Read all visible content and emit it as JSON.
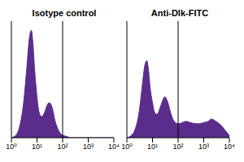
{
  "chart_data": [
    {
      "type": "area",
      "title": "Isotype control",
      "x": [
        1,
        1.5,
        2,
        3,
        4,
        5,
        6,
        7,
        8,
        10,
        12,
        15,
        20,
        25,
        30,
        40,
        50,
        70,
        100,
        150,
        200,
        300,
        500,
        700,
        1000,
        1500,
        2000,
        3000,
        5000,
        7000,
        10000
      ],
      "values": [
        0,
        2,
        8,
        30,
        60,
        85,
        92,
        80,
        60,
        35,
        22,
        18,
        22,
        28,
        30,
        25,
        15,
        6,
        2,
        1,
        0,
        0,
        0,
        0,
        0,
        0,
        0,
        0,
        0,
        0,
        0
      ],
      "xlim": [
        1,
        10000
      ],
      "xticks": [
        {
          "value": 1,
          "label": "10⁰"
        },
        {
          "value": 10,
          "label": "10¹"
        },
        {
          "value": 100,
          "label": "10²"
        },
        {
          "value": 1000,
          "label": "10³"
        },
        {
          "value": 10000,
          "label": "10⁴"
        }
      ],
      "ylim": [
        0,
        100
      ],
      "log": "x",
      "tick_labels": "x",
      "color": "#5a2d8c",
      "gate": 100
    },
    {
      "type": "area",
      "title": "Anti-Dlk-FITC",
      "x": [
        1,
        1.5,
        2,
        3,
        4,
        5,
        6,
        7,
        8,
        10,
        12,
        15,
        20,
        25,
        30,
        40,
        50,
        70,
        100,
        150,
        200,
        300,
        500,
        700,
        1000,
        1500,
        2000,
        3000,
        5000,
        7000,
        10000
      ],
      "values": [
        0,
        2,
        6,
        22,
        45,
        62,
        66,
        58,
        44,
        30,
        22,
        20,
        26,
        32,
        35,
        30,
        22,
        14,
        12,
        13,
        14,
        13,
        12,
        12,
        13,
        14,
        16,
        14,
        10,
        6,
        2
      ],
      "xlim": [
        1,
        10000
      ],
      "xticks": [
        {
          "value": 1,
          "label": "10⁰"
        },
        {
          "value": 10,
          "label": "10¹"
        },
        {
          "value": 100,
          "label": "10²"
        },
        {
          "value": 1000,
          "label": "10³"
        },
        {
          "value": 10000,
          "label": "10⁴"
        }
      ],
      "ylim": [
        0,
        100
      ],
      "log": "x",
      "tick_labels": "x",
      "color": "#5a2d8c",
      "gate": 100
    }
  ]
}
